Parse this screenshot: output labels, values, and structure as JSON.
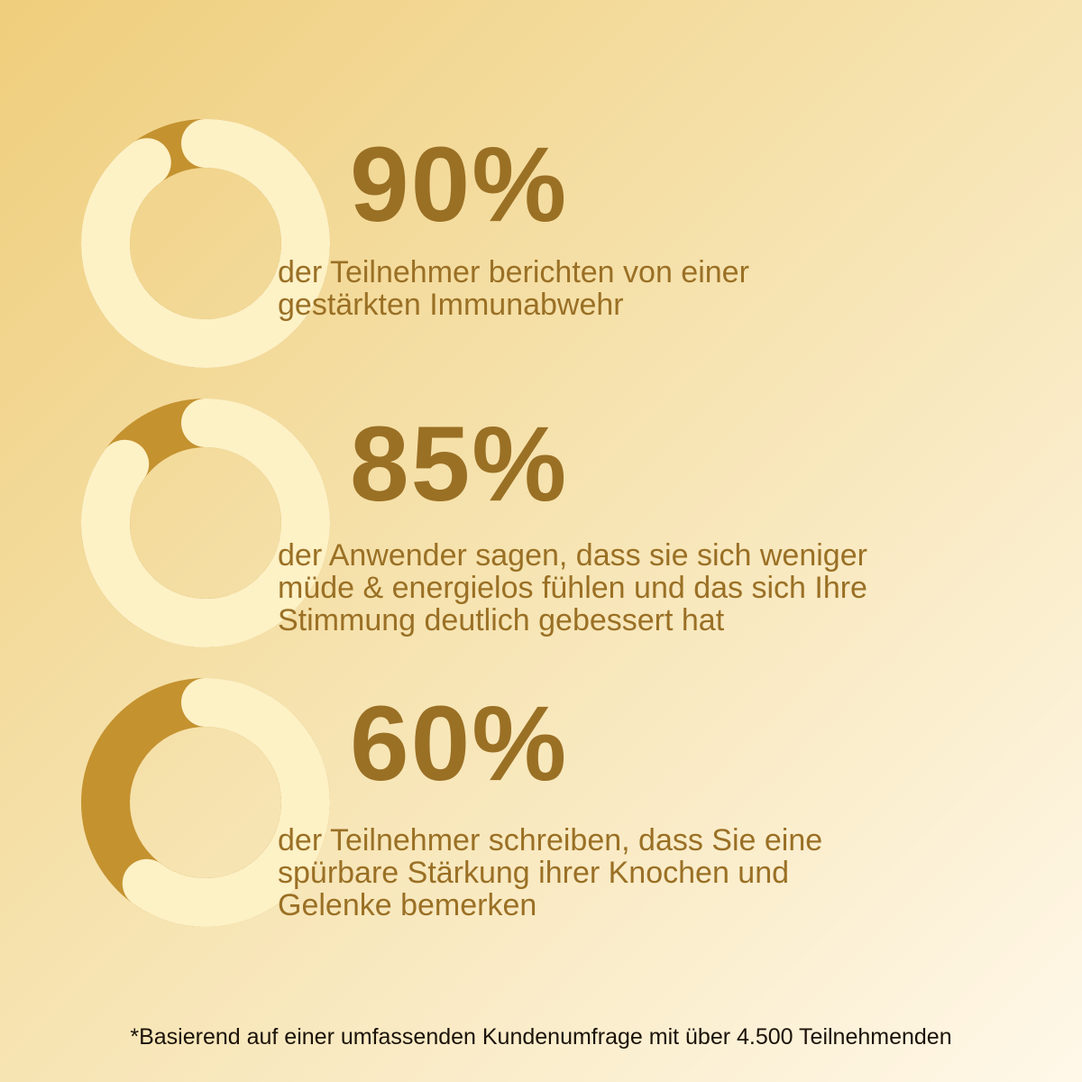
{
  "colors": {
    "accent": "#c4922f",
    "track": "#fdf1c6",
    "text": "#9a7025",
    "footnote": "#1b1208"
  },
  "stats": [
    {
      "value_label": "90%",
      "percent": 90,
      "caption": "der Teilnehmer berichten von einer\ngestärkten Immunabwehr"
    },
    {
      "value_label": "85%",
      "percent": 85,
      "caption": "der Anwender sagen, dass sie sich weniger\nmüde & energielos fühlen und das sich Ihre\nStimmung deutlich gebessert hat"
    },
    {
      "value_label": "60%",
      "percent": 60,
      "caption": "der Teilnehmer schreiben, dass Sie eine\nspürbare Stärkung ihrer Knochen und\nGelenke bemerken"
    }
  ],
  "footnote": "*Basierend auf einer umfassenden Kundenumfrage mit über 4.500 Teilnehmenden"
}
